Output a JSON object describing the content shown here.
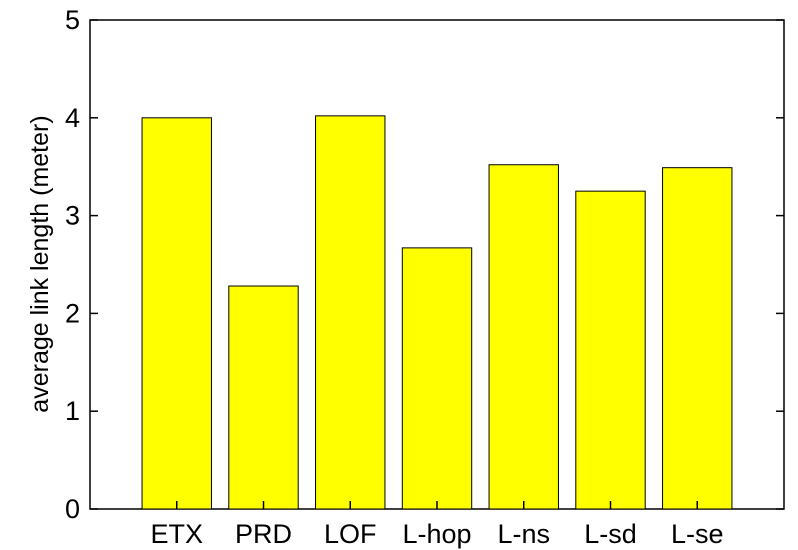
{
  "chart_data": {
    "type": "bar",
    "title": "",
    "xlabel": "",
    "ylabel": "average link length (meter)",
    "categories": [
      "ETX",
      "PRD",
      "LOF",
      "L-hop",
      "L-ns",
      "L-sd",
      "L-se"
    ],
    "values": [
      4.0,
      2.28,
      4.02,
      2.67,
      3.52,
      3.25,
      3.49
    ],
    "ylim": [
      0,
      5
    ],
    "yticks": [
      "0",
      "1",
      "2",
      "3",
      "4",
      "5"
    ],
    "grid": false,
    "legend": "none",
    "bar_color": "#FFFF00",
    "bar_edge_color": "#000000"
  }
}
